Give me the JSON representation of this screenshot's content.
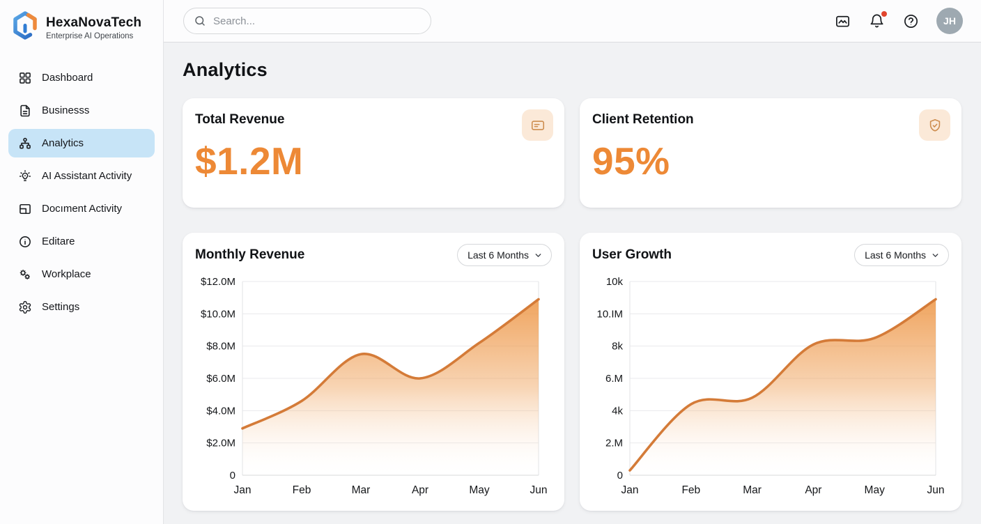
{
  "brand": {
    "name": "HexaNovaTech",
    "tagline": "Enterprise AI Operations",
    "logo_blue": "#2f7cd3",
    "logo_orange": "#ee8a3c"
  },
  "topbar": {
    "search_placeholder": "Search...",
    "icons": [
      "image-icon",
      "bell-icon",
      "help-icon"
    ],
    "notification_dot_color": "#e2452e",
    "avatar_initials": "JH"
  },
  "sidebar": {
    "items": [
      {
        "label": "Dashboard",
        "icon": "grid-icon",
        "active": false
      },
      {
        "label": "Businesss",
        "icon": "document-icon",
        "active": false
      },
      {
        "label": "Analytics",
        "icon": "sitemap-icon",
        "active": true
      },
      {
        "label": "AI Assistant Activity",
        "icon": "idea-bulb-icon",
        "active": false
      },
      {
        "label": "Docıment Activity",
        "icon": "layout-panel-icon",
        "active": false
      },
      {
        "label": "Editare",
        "icon": "info-circle-icon",
        "active": false
      },
      {
        "label": "Workplace",
        "icon": "gears-icon",
        "active": false
      },
      {
        "label": "Settings",
        "icon": "gear-icon",
        "active": false
      }
    ],
    "active_bg": "#c7e4f7"
  },
  "page": {
    "title": "Analytics"
  },
  "stats": [
    {
      "title": "Total Revenue",
      "value": "$1.2M",
      "icon": "credit-card-icon",
      "value_color": "#ED8936"
    },
    {
      "title": "Client Retention",
      "value": "95%",
      "icon": "shield-check-icon",
      "value_color": "#ED8936"
    }
  ],
  "chart_data": [
    {
      "type": "area",
      "title": "Monthly Revenue",
      "range_label": "Last 6 Months",
      "categories": [
        "Jan",
        "Feb",
        "Mar",
        "Apr",
        "May",
        "Jun"
      ],
      "values": [
        2.9,
        4.6,
        7.5,
        6.0,
        8.2,
        10.9
      ],
      "unit": "USD millions",
      "y_tick_labels": [
        "$12.0M",
        "$10.0M",
        "$8.0M",
        "$6.0M",
        "$4.0M",
        "$2.0M",
        "0"
      ],
      "ylim": [
        0,
        12
      ],
      "grid": true,
      "legend": false,
      "label_gutter": 72,
      "line_color": "#d47b38",
      "fill_top": "#efa057"
    },
    {
      "type": "area",
      "title": "User Growth",
      "range_label": "Last 6 Months",
      "categories": [
        "Jan",
        "Feb",
        "Mar",
        "Apr",
        "May",
        "Jun"
      ],
      "values": [
        0.3,
        4.4,
        4.8,
        8.1,
        8.5,
        10.9
      ],
      "unit": "thousands of users",
      "y_tick_labels": [
        "10k",
        "10.IM",
        "8k",
        "6.M",
        "4k",
        "2.M",
        "0"
      ],
      "ylim": [
        0,
        12
      ],
      "grid": true,
      "legend": false,
      "label_gutter": 58,
      "line_color": "#d47b38",
      "fill_top": "#efa057"
    }
  ]
}
